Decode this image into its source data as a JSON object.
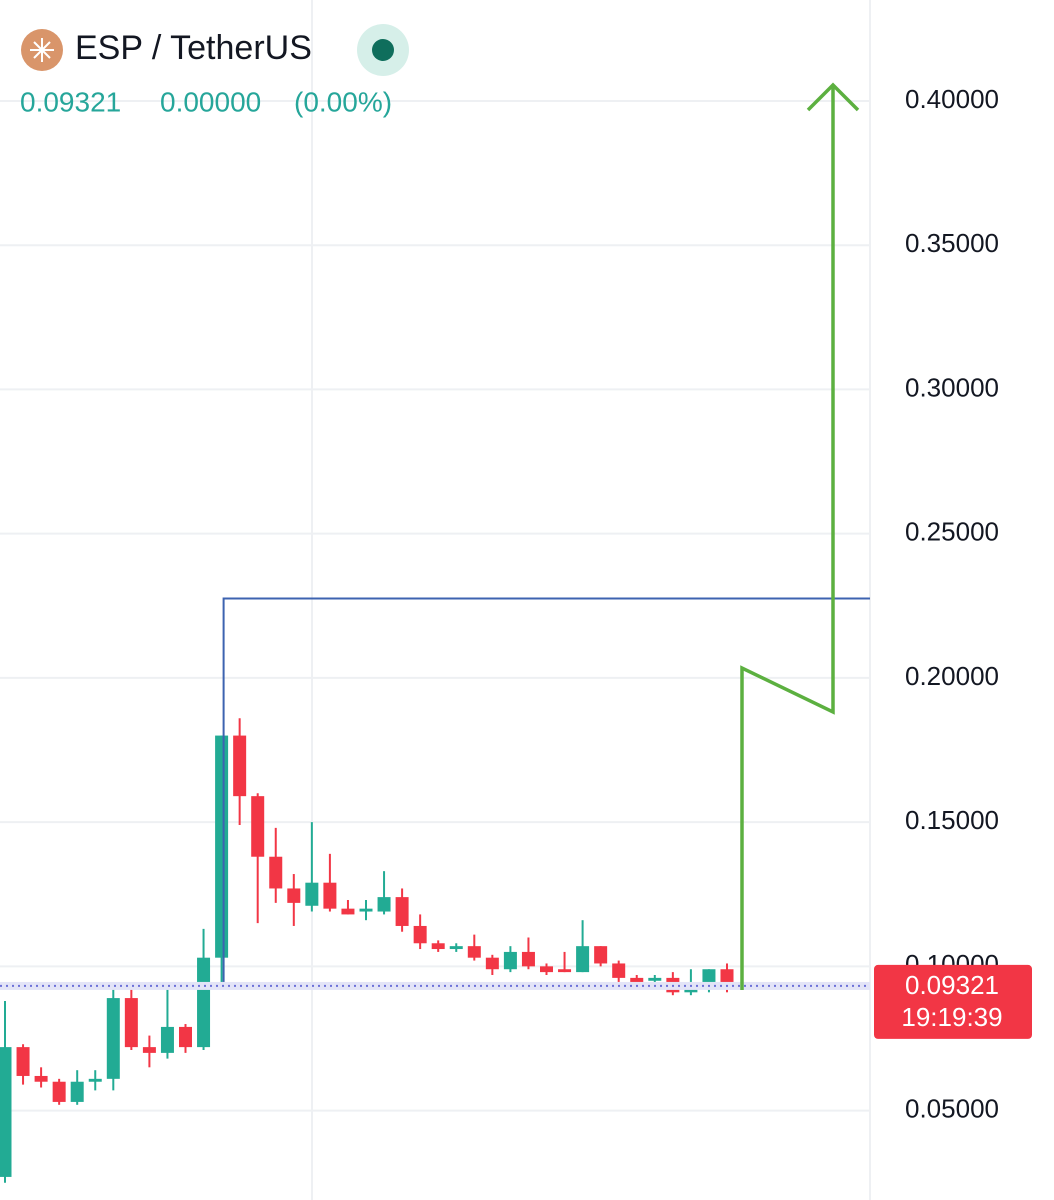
{
  "chart_data": {
    "type": "candlestick",
    "title": "ESP / TetherUS",
    "price": 0.09321,
    "change": {
      "value": 0,
      "label": "0.00000"
    },
    "change_percent": {
      "value": 0,
      "label": "(0.00%)"
    },
    "countdown": "19:19:39",
    "up_color": "#22ab94",
    "down_color": "#f23645",
    "open": [
      0.027,
      0.072,
      0.062,
      0.06,
      0.053,
      0.06,
      0.061,
      0.089,
      0.072,
      0.07,
      0.079,
      0.072,
      0.103,
      0.18,
      0.159,
      0.138,
      0.127,
      0.121,
      0.129,
      0.12,
      0.119,
      0.119,
      0.124,
      0.114,
      0.108,
      0.106,
      0.107,
      0.103,
      0.099,
      0.105,
      0.1,
      0.099,
      0.098,
      0.107,
      0.101,
      0.096,
      0.095,
      0.096,
      0.091,
      0.093,
      0.099,
      0.0935
    ],
    "high": [
      0.088,
      0.073,
      0.065,
      0.061,
      0.064,
      0.064,
      0.094,
      0.092,
      0.076,
      0.092,
      0.08,
      0.113,
      0.18,
      0.186,
      0.16,
      0.148,
      0.132,
      0.15,
      0.139,
      0.123,
      0.123,
      0.133,
      0.127,
      0.118,
      0.109,
      0.108,
      0.111,
      0.104,
      0.107,
      0.11,
      0.101,
      0.105,
      0.116,
      0.107,
      0.102,
      0.097,
      0.097,
      0.098,
      0.099,
      0.099,
      0.101,
      0.0945
    ],
    "low": [
      0.025,
      0.059,
      0.058,
      0.052,
      0.052,
      0.057,
      0.057,
      0.071,
      0.065,
      0.068,
      0.07,
      0.071,
      0.093,
      0.149,
      0.115,
      0.122,
      0.114,
      0.119,
      0.119,
      0.118,
      0.116,
      0.118,
      0.112,
      0.106,
      0.105,
      0.105,
      0.102,
      0.097,
      0.098,
      0.099,
      0.097,
      0.098,
      0.098,
      0.1,
      0.094,
      0.093,
      0.094,
      0.09,
      0.09,
      0.091,
      0.091,
      0.0925
    ],
    "close": [
      0.072,
      0.062,
      0.06,
      0.053,
      0.06,
      0.061,
      0.089,
      0.072,
      0.07,
      0.079,
      0.072,
      0.103,
      0.18,
      0.159,
      0.138,
      0.127,
      0.122,
      0.129,
      0.12,
      0.118,
      0.12,
      0.124,
      0.114,
      0.108,
      0.106,
      0.107,
      0.103,
      0.099,
      0.105,
      0.1,
      0.098,
      0.098,
      0.107,
      0.101,
      0.096,
      0.094,
      0.096,
      0.091,
      0.094,
      0.099,
      0.0932,
      0.09321
    ],
    "level_line": 0.2275,
    "level_color": "#3d63b0",
    "ylim": [
      0.019,
      0.435
    ],
    "yticks": [
      {
        "value": 0.05,
        "label": "0.05000"
      },
      {
        "value": 0.1,
        "label": "0.10000"
      },
      {
        "value": 0.15,
        "label": "0.15000"
      },
      {
        "value": 0.2,
        "label": "0.20000"
      },
      {
        "value": 0.25,
        "label": "0.25000"
      },
      {
        "value": 0.3,
        "label": "0.30000"
      },
      {
        "value": 0.35,
        "label": "0.35000"
      },
      {
        "value": 0.4,
        "label": "0.40000"
      }
    ],
    "grid": true
  }
}
